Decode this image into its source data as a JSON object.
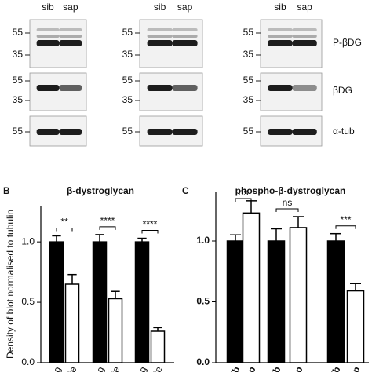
{
  "blots": {
    "lanes": [
      "sib",
      "sap",
      "sib",
      "sap",
      "sib",
      "sap"
    ],
    "rows": [
      {
        "label": "P-βDG",
        "markers": [
          "55",
          "35"
        ]
      },
      {
        "label": "βDG",
        "markers": [
          "55",
          "35"
        ]
      },
      {
        "label": "α-tub",
        "markers": [
          "55"
        ]
      }
    ]
  },
  "chart_data": [
    {
      "type": "bar",
      "panel": "B",
      "title": "β-dystroglycan",
      "ylabel": "Density of blot normalised to tubulin",
      "categories": [
        "sibling",
        "sapje",
        "sibling",
        "sapje",
        "sibling",
        "sapje"
      ],
      "values": [
        1.0,
        0.65,
        1.0,
        0.53,
        1.0,
        0.26
      ],
      "errors": [
        0.05,
        0.08,
        0.06,
        0.06,
        0.03,
        0.03
      ],
      "colors": [
        "#000000",
        "#ffffff",
        "#000000",
        "#ffffff",
        "#000000",
        "#ffffff"
      ],
      "significance": [
        "**",
        "****",
        "****"
      ],
      "ylim": [
        0,
        1.3
      ],
      "yticks": [
        {
          "value": 0,
          "label": "0.0"
        },
        {
          "value": 0.5,
          "label": "0.5"
        },
        {
          "value": 1,
          "label": "1.0"
        }
      ]
    },
    {
      "type": "bar",
      "panel": "C",
      "title": "phospho-β-dystroglycan",
      "categories": [
        "sib",
        "sap",
        "sib",
        "sap",
        "sib",
        "sap"
      ],
      "values": [
        1.0,
        1.23,
        1.0,
        1.11,
        1.0,
        0.59
      ],
      "errors": [
        0.05,
        0.1,
        0.1,
        0.09,
        0.06,
        0.06
      ],
      "colors": [
        "#000000",
        "#ffffff",
        "#000000",
        "#ffffff",
        "#000000",
        "#ffffff"
      ],
      "significance": [
        "ns",
        "ns",
        "***"
      ],
      "ylim": [
        0,
        1.4
      ],
      "yticks": [
        {
          "value": 0,
          "label": "0.0"
        },
        {
          "value": 0.5,
          "label": "0.5"
        },
        {
          "value": 1,
          "label": "1.0"
        }
      ]
    }
  ]
}
